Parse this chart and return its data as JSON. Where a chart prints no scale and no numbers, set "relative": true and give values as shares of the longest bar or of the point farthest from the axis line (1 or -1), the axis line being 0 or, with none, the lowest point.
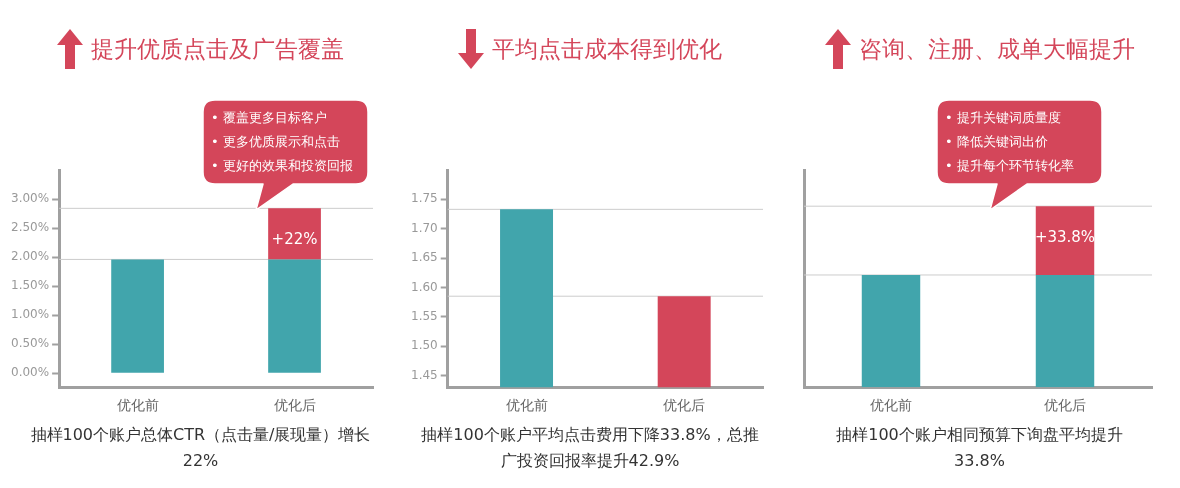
{
  "chart_data": [
    {
      "type": "bar",
      "title": "提升优质点击及广告覆盖",
      "xlabel": "抽样100个账户总体CTR（点击量/展现量）增长22%",
      "categories": [
        "优化前",
        "优化后"
      ],
      "stacked": true,
      "series": [
        {
          "color": "#41a5ac",
          "values": [
            1.96,
            1.96
          ]
        },
        {
          "color": "#d4465a",
          "values": [
            null,
            0.88
          ]
        }
      ],
      "ylim": [
        -0.24,
        3.5
      ],
      "yticks": [
        {
          "value": 0,
          "label": "0.00%"
        },
        {
          "value": 0.5,
          "label": "0.50%"
        },
        {
          "value": 1,
          "label": "1.00%"
        },
        {
          "value": 1.5,
          "label": "1.50%"
        },
        {
          "value": 2,
          "label": "2.00%"
        },
        {
          "value": 2.5,
          "label": "2.50%"
        },
        {
          "value": 3,
          "label": "3.00%"
        }
      ],
      "ref_lines": [
        {
          "axis": "y",
          "value": 1.96,
          "color": "#cccccc"
        },
        {
          "axis": "y",
          "value": 2.84,
          "color": "#cccccc"
        }
      ],
      "annotations": [
        "• 覆盖更多目标客户",
        "• 更多优质展示和点击",
        "• 更好的效果和投资回报",
        {
          "text": "+22%",
          "x": "优化后",
          "y": 2.84
        }
      ]
    },
    {
      "type": "bar",
      "title": "平均点击成本得到优化",
      "xlabel": "抽样100个账户平均点击费用下降33.8%，总推广投资回报率提升42.9%",
      "categories": [
        "优化前",
        "优化后"
      ],
      "values": [
        1.733,
        1.585
      ],
      "colors": [
        "#41a5ac",
        "#d4465a"
      ],
      "ylim": [
        1.43,
        1.8
      ],
      "yticks": [
        {
          "value": 1.45,
          "label": "1.45"
        },
        {
          "value": 1.5,
          "label": "1.50"
        },
        {
          "value": 1.55,
          "label": "1.55"
        },
        {
          "value": 1.6,
          "label": "1.60"
        },
        {
          "value": 1.65,
          "label": "1.65"
        },
        {
          "value": 1.7,
          "label": "1.70"
        },
        {
          "value": 1.75,
          "label": "1.75"
        }
      ],
      "ref_lines": [
        {
          "axis": "y",
          "value": 1.733,
          "color": "#cccccc"
        },
        {
          "axis": "y",
          "value": 1.585,
          "color": "#cccccc"
        }
      ]
    },
    {
      "type": "bar",
      "title": "咨询、注册、成单大幅提升",
      "xlabel": "抽样100个账户相同预算下询盘平均提升33.8%",
      "categories": [
        "优化前",
        "优化后"
      ],
      "stacked": true,
      "relative": true,
      "series": [
        {
          "color": "#41a5ac",
          "values": [
            0.62,
            0.62
          ]
        },
        {
          "color": "#d4465a",
          "values": [
            null,
            0.38
          ]
        }
      ],
      "ref_lines": [
        {
          "axis": "y",
          "value": 0.62,
          "color": "#cccccc"
        },
        {
          "axis": "y",
          "value": 1,
          "color": "#cccccc"
        }
      ],
      "annotations": [
        "• 提升关键词质量度",
        "• 降低关键词出价",
        "• 提升每个环节转化率",
        {
          "text": "+33.8%",
          "x": "优化后",
          "y": 1
        }
      ]
    }
  ]
}
